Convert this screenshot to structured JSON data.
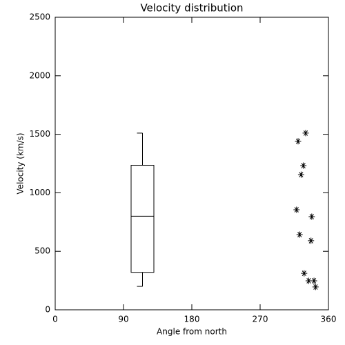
{
  "chart_data": {
    "type": "box",
    "title": "Velocity distribution",
    "xlabel": "Angle from north",
    "ylabel": "Velocity (km/s)",
    "xlim": [
      0,
      360
    ],
    "xticks": [
      0,
      90,
      180,
      270,
      360
    ],
    "ylim": [
      0,
      2500
    ],
    "yticks": [
      0,
      500,
      1000,
      1500,
      2000,
      2500
    ],
    "color": "#000000",
    "boxes": [
      {
        "x": 115,
        "width": 30,
        "whisker_low": 200,
        "q1": 320,
        "median": 800,
        "q3": 1235,
        "whisker_high": 1510
      }
    ],
    "points": {
      "marker": "asterisk",
      "x": [
        330,
        320,
        327,
        324,
        318,
        338,
        322,
        337,
        328,
        334,
        341,
        343
      ],
      "y": [
        1510,
        1440,
        1232,
        1155,
        855,
        796,
        643,
        590,
        312,
        248,
        248,
        195
      ]
    }
  }
}
